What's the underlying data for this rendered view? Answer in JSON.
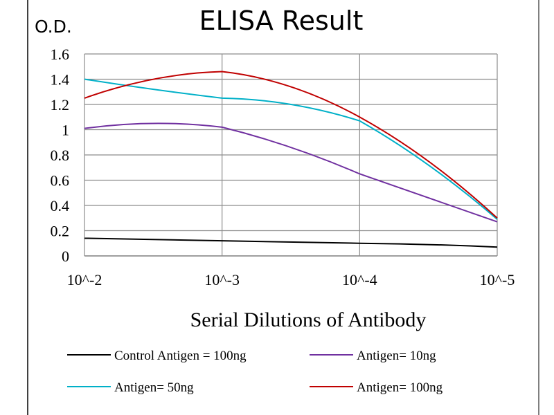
{
  "chart_data": {
    "type": "line",
    "title": "ELISA Result",
    "ylabel": "O.D.",
    "xlabel": "Serial Dilutions of Antibody",
    "x_tick_labels": [
      "10^-2",
      "10^-3",
      "10^-4",
      "10^-5"
    ],
    "y_tick_labels": [
      "0",
      "0.2",
      "0.4",
      "0.6",
      "0.8",
      "1",
      "1.2",
      "1.4",
      "1.6"
    ],
    "ylim": [
      0,
      1.6
    ],
    "y_step": 0.2,
    "x": [
      0.01,
      0.001,
      0.0001,
      1e-05
    ],
    "x_scale": "log",
    "grid": true,
    "legend_position": "bottom",
    "series": [
      {
        "name": "Control Antigen = 100ng",
        "color": "#000000",
        "values": [
          0.14,
          0.12,
          0.1,
          0.07
        ],
        "mid": [
          0.13,
          0.11,
          0.09
        ]
      },
      {
        "name": "Antigen= 10ng",
        "color": "#7030a0",
        "values": [
          1.01,
          1.02,
          0.65,
          0.27
        ],
        "mid": [
          1.05,
          0.86,
          0.46
        ]
      },
      {
        "name": "Antigen= 50ng",
        "color": "#00b0c8",
        "values": [
          1.4,
          1.25,
          1.07,
          0.29
        ],
        "mid": [
          1.32,
          1.2,
          0.72
        ]
      },
      {
        "name": "Antigen= 100ng",
        "color": "#c00000",
        "values": [
          1.25,
          1.46,
          1.1,
          0.3
        ],
        "mid": [
          1.4,
          1.34,
          0.75
        ]
      }
    ]
  }
}
